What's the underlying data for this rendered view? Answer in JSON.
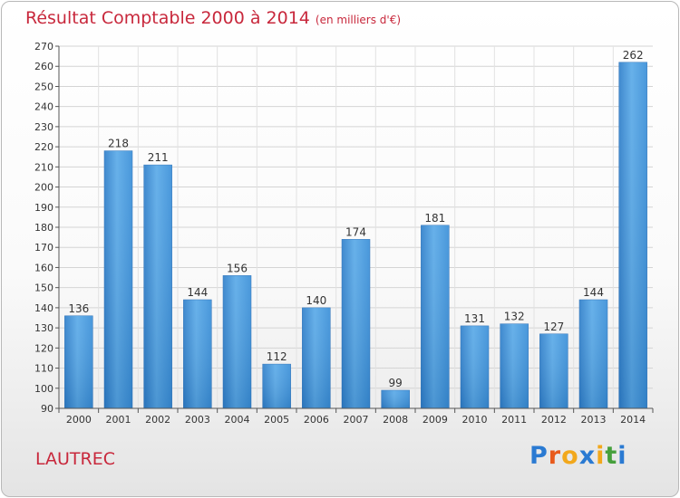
{
  "chart_data": {
    "type": "bar",
    "title": "Résultat Comptable 2000 à 2014",
    "subtitle": "(en milliers d'€)",
    "categories": [
      "2000",
      "2001",
      "2002",
      "2003",
      "2004",
      "2005",
      "2006",
      "2007",
      "2008",
      "2009",
      "2010",
      "2011",
      "2012",
      "2013",
      "2014"
    ],
    "values": [
      136,
      218,
      211,
      144,
      156,
      112,
      140,
      174,
      99,
      181,
      131,
      132,
      127,
      144,
      262
    ],
    "ylim": [
      90,
      270
    ],
    "ytick_step": 10,
    "grid": true,
    "xlabel": "",
    "ylabel": "",
    "bar_color": "#3a8fd8"
  },
  "footer": {
    "commune": "LAUTREC",
    "logo_letters": [
      "P",
      "r",
      "o",
      "x",
      "i",
      "t",
      "i"
    ],
    "logo_colors": [
      "#2a7ad2",
      "#e85a1c",
      "#f2a81c",
      "#2a7ad2",
      "#f2a81c",
      "#46a03c",
      "#2a7ad2"
    ]
  }
}
